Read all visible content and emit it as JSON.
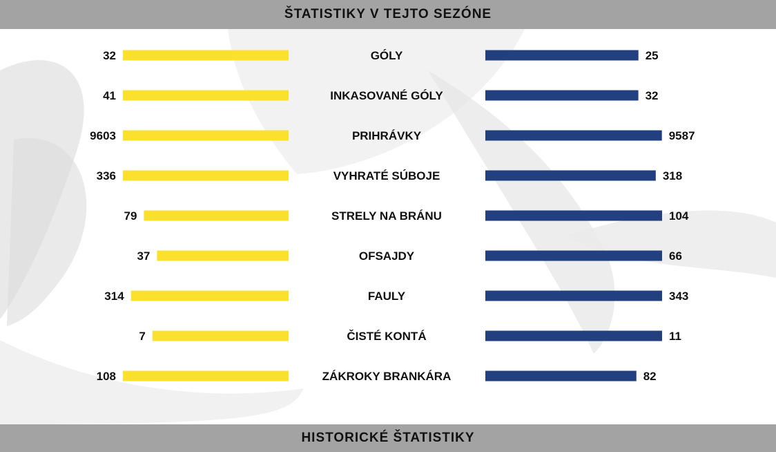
{
  "header": {
    "title": "ŠTATISTIKY V TEJTO SEZÓNE"
  },
  "footer": {
    "title": "HISTORICKÉ ŠTATISTIKY"
  },
  "colors": {
    "left": "#fbe02e",
    "right": "#223f80",
    "bar_bg": "#a3a3a3"
  },
  "chart_data": {
    "type": "bar",
    "orientation": "horizontal-diverging",
    "categories": [
      "GÓLY",
      "INKASOVANÉ GÓLY",
      "PRIHRÁVKY",
      "VYHRATÉ SÚBOJE",
      "STRELY NA BRÁNU",
      "OFSAJDY",
      "FAULY",
      "ČISTÉ KONTÁ",
      "ZÁKROKY BRANKÁRA"
    ],
    "series": [
      {
        "side": "left",
        "color": "#fbe02e",
        "values": [
          32,
          41,
          9603,
          336,
          79,
          37,
          314,
          7,
          108
        ]
      },
      {
        "side": "right",
        "color": "#223f80",
        "values": [
          25,
          32,
          9587,
          318,
          104,
          66,
          343,
          11,
          82
        ]
      }
    ]
  }
}
